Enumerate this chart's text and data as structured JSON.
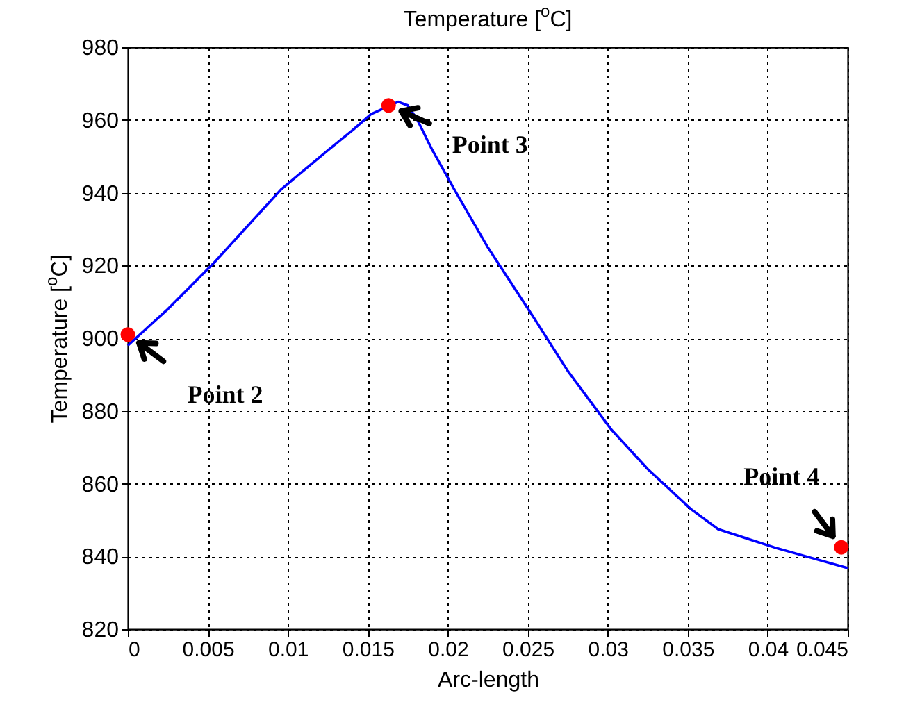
{
  "chart_data": {
    "type": "line",
    "title": "Temperature [$^{o}$C]",
    "xlabel": "Arc-length",
    "ylabel": "Temperature [$^{o}$C]",
    "x": [
      0,
      0.0025,
      0.0054,
      0.0096,
      0.0126,
      0.014,
      0.0152,
      0.0169,
      0.0175,
      0.0181,
      0.019,
      0.0204,
      0.0225,
      0.0254,
      0.0275,
      0.0302,
      0.0325,
      0.0352,
      0.0369,
      0.039,
      0.0404,
      0.042,
      0.045
    ],
    "series": [
      {
        "type": "line",
        "marker": "none",
        "color": "#0000ff",
        "values": [
          898,
          908,
          920.8,
          941,
          952,
          957,
          961.6,
          965,
          964,
          960,
          952,
          941,
          925,
          905.5,
          891,
          875,
          864,
          853,
          847.5,
          844.5,
          842.5,
          840.5,
          836.8
        ]
      },
      {
        "type": "scatter",
        "marker": "circle",
        "color": "#ff0000",
        "x": [
          0,
          0.0163,
          0.0446
        ],
        "values": [
          901,
          964,
          842.5
        ]
      }
    ],
    "annotations": [
      {
        "text": "Point 2",
        "x": 0,
        "y": 901
      },
      {
        "text": "Point 3",
        "x": 0.0163,
        "y": 964
      },
      {
        "text": "Point 4",
        "x": 0.0446,
        "y": 842.5
      }
    ],
    "xlim": [
      0,
      0.045
    ],
    "xticks": [
      0,
      0.005,
      0.01,
      0.015,
      0.02,
      0.025,
      0.03,
      0.035,
      0.04,
      0.045
    ],
    "ylim": [
      820,
      980
    ],
    "yticks": [
      820,
      840,
      860,
      880,
      900,
      920,
      940,
      960,
      980
    ],
    "grid": true,
    "line_style": "solid"
  }
}
